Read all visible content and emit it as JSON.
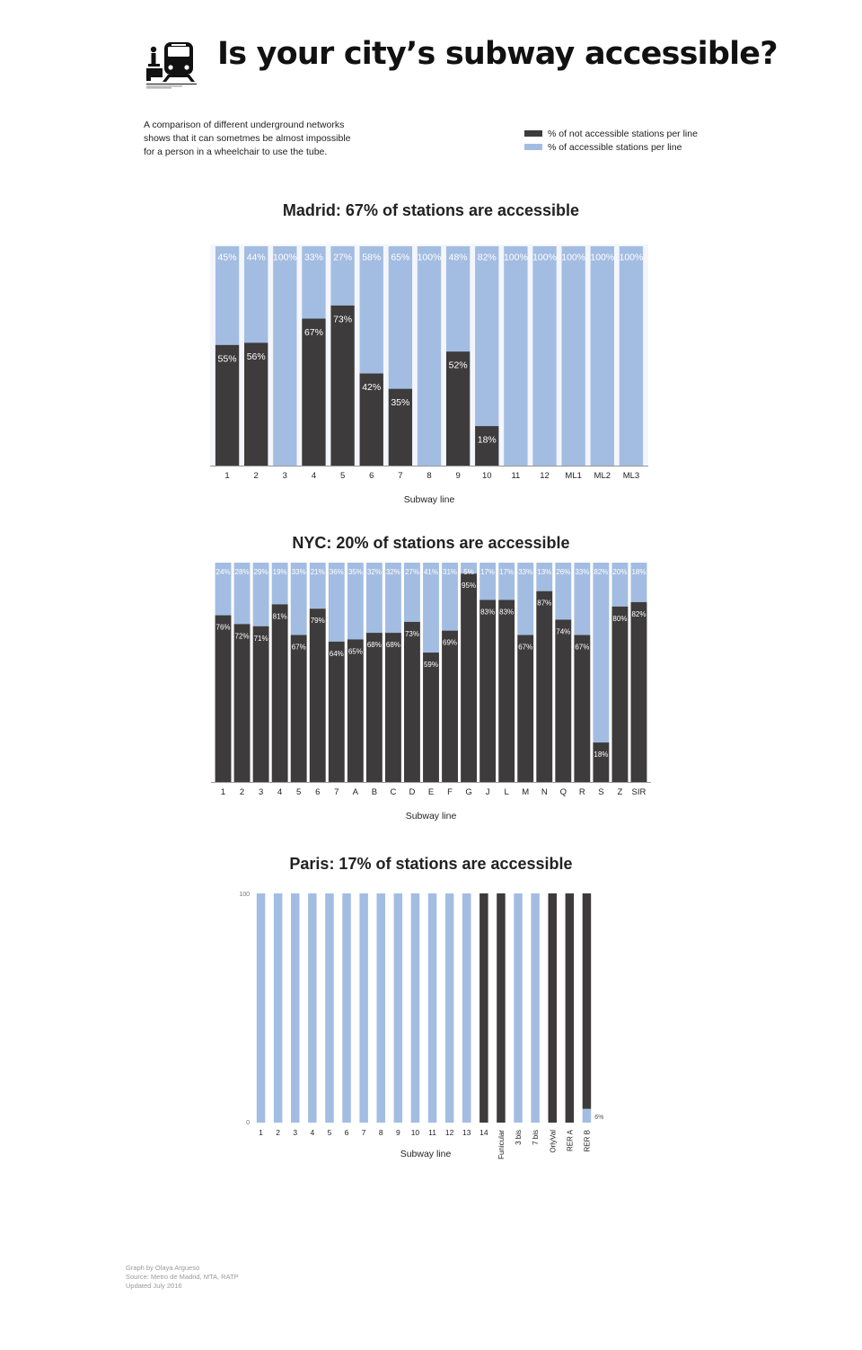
{
  "header": {
    "title": "Is your city’s subway accessible?",
    "icon": "wheelchair-subway-icon",
    "intro": "A comparison of different underground networks shows that it can sometmes be almost impossible for a person in a wheelchair to use the tube."
  },
  "legend": {
    "not_accessible": "% of not accessible stations per line",
    "accessible": "% of accessible stations per line"
  },
  "colors": {
    "not_accessible": "#3d3b3b",
    "accessible": "#a3bde2",
    "axis": "#999999"
  },
  "chart_data": [
    {
      "type": "bar",
      "stacked": true,
      "title": "Madrid: 67% of stations are accessible",
      "xlabel": "Subway line",
      "ylabel": "",
      "ylim": [
        0,
        100
      ],
      "categories": [
        "1",
        "2",
        "3",
        "4",
        "5",
        "6",
        "7",
        "8",
        "9",
        "10",
        "11",
        "12",
        "ML1",
        "ML2",
        "ML3"
      ],
      "series": [
        {
          "name": "% of not accessible stations per line",
          "values": [
            55,
            56,
            0,
            67,
            73,
            42,
            35,
            0,
            52,
            18,
            0,
            0,
            0,
            0,
            0
          ]
        },
        {
          "name": "% of accessible stations per line",
          "values": [
            45,
            44,
            100,
            33,
            27,
            58,
            65,
            100,
            48,
            82,
            100,
            100,
            100,
            100,
            100
          ]
        }
      ]
    },
    {
      "type": "bar",
      "stacked": true,
      "title": "NYC: 20% of stations are accessible",
      "xlabel": "Subway line",
      "ylabel": "",
      "ylim": [
        0,
        100
      ],
      "categories": [
        "1",
        "2",
        "3",
        "4",
        "5",
        "6",
        "7",
        "A",
        "B",
        "C",
        "D",
        "E",
        "F",
        "G",
        "J",
        "L",
        "M",
        "N",
        "Q",
        "R",
        "S",
        "Z",
        "SIR"
      ],
      "series": [
        {
          "name": "% of not accessible stations per line",
          "values": [
            76,
            72,
            71,
            81,
            67,
            79,
            64,
            65,
            68,
            68,
            73,
            59,
            69,
            95,
            83,
            83,
            67,
            87,
            74,
            67,
            18,
            80,
            82
          ]
        },
        {
          "name": "% of accessible stations per line",
          "values": [
            24,
            28,
            29,
            19,
            33,
            21,
            36,
            35,
            32,
            32,
            27,
            41,
            31,
            5,
            17,
            17,
            33,
            13,
            26,
            33,
            82,
            20,
            18
          ]
        }
      ]
    },
    {
      "type": "bar",
      "stacked": true,
      "title": "Paris: 17% of stations are accessible",
      "xlabel": "Subway line",
      "ylabel": "",
      "ylim": [
        0,
        100
      ],
      "yticks": [
        "0",
        "100"
      ],
      "categories": [
        "1",
        "2",
        "3",
        "4",
        "5",
        "6",
        "7",
        "8",
        "9",
        "10",
        "11",
        "12",
        "13",
        "14",
        "Funicular",
        "3 bis",
        "7 bis",
        "OrlyVal",
        "RER A",
        "RER B"
      ],
      "rotated_from": 14,
      "series": [
        {
          "name": "% of not accessible stations per line",
          "values": [
            0,
            0,
            0,
            0,
            0,
            0,
            0,
            0,
            0,
            0,
            0,
            0,
            0,
            100,
            100,
            0,
            0,
            100,
            100,
            94
          ]
        },
        {
          "name": "% of accessible stations per line",
          "values": [
            100,
            100,
            100,
            100,
            100,
            100,
            100,
            100,
            100,
            100,
            100,
            100,
            100,
            0,
            0,
            100,
            100,
            0,
            0,
            6
          ]
        }
      ],
      "annotations": [
        {
          "category": "RER B",
          "text": "6%"
        }
      ]
    }
  ],
  "footer": {
    "credit": "Graph by Olaya Argueso",
    "source": "Source: Metro de Madrid, MTA, RATP",
    "updated": "Updated July 2016"
  }
}
